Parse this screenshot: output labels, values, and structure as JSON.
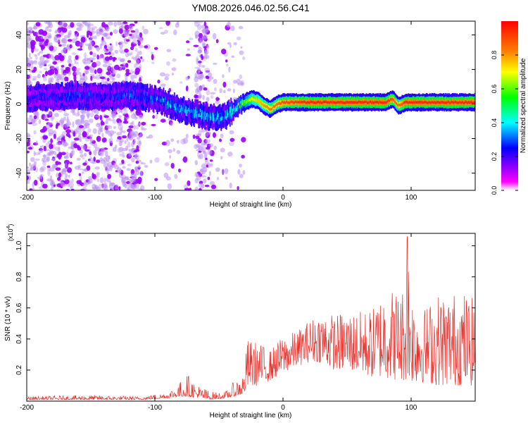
{
  "title": "YM08.2026.046.02.56.C41",
  "colors": {
    "spectrum_ramp": [
      "#ffffff",
      "#ff00ff",
      "#8000ff",
      "#0000ff",
      "#00ffff",
      "#00ff00",
      "#ffff00",
      "#ff8000",
      "#ff0000"
    ],
    "sparse_scatter": "#b88cf2",
    "snr_line": "#e8302b"
  },
  "chart_data": [
    {
      "type": "heatmap",
      "title": "YM08.2026.046.02.56.C41",
      "xlabel": "Height of straight line (km)",
      "ylabel": "Frequency (Hz)",
      "xlim": [
        -200,
        150
      ],
      "ylim": [
        -50,
        48
      ],
      "x_ticks": [
        -200,
        -100,
        0,
        100
      ],
      "x_tick_labels": [
        "-200",
        "-100",
        "0",
        "100"
      ],
      "y_ticks": [
        -40,
        -20,
        0,
        20,
        40
      ],
      "y_tick_labels": [
        "-40",
        "-20",
        "0",
        "20",
        "40"
      ],
      "colorbar": {
        "label": "Normalized spectral amplitude",
        "range": [
          0,
          1
        ],
        "ticks": [
          0.0,
          0.2,
          0.4,
          0.6,
          0.8
        ],
        "tick_labels": [
          "0.0",
          "0.2",
          "0.4",
          "0.6",
          "0.8"
        ]
      },
      "ridge": {
        "x": [
          -200,
          -180,
          -160,
          -140,
          -120,
          -110,
          -100,
          -90,
          -80,
          -70,
          -60,
          -50,
          -45,
          -40,
          -35,
          -30,
          -25,
          -20,
          -15,
          -10,
          -5,
          0,
          20,
          40,
          60,
          80,
          85,
          90,
          95,
          100,
          120,
          150
        ],
        "freq": [
          3,
          4,
          5,
          4,
          5,
          4,
          3,
          0,
          -3,
          -5,
          -7,
          -8,
          -7,
          -4,
          -1,
          1,
          3,
          2,
          -1,
          -3,
          0,
          1,
          1,
          1,
          1,
          1,
          3,
          -1,
          1,
          1,
          1,
          1
        ],
        "amp": [
          0.22,
          0.25,
          0.28,
          0.25,
          0.3,
          0.3,
          0.35,
          0.35,
          0.38,
          0.4,
          0.38,
          0.4,
          0.42,
          0.5,
          0.55,
          0.6,
          0.7,
          0.75,
          0.8,
          0.85,
          0.85,
          0.9,
          0.95,
          0.95,
          0.95,
          0.95,
          0.9,
          0.85,
          0.95,
          0.95,
          0.95,
          0.95
        ]
      }
    },
    {
      "type": "line",
      "xlabel": "Height of straight line (km)",
      "ylabel": "SNR (10 * v/v)",
      "scale_label": "(x10",
      "scale_exponent": "4",
      "scale_close": ")",
      "xlim": [
        -200,
        150
      ],
      "ylim": [
        0,
        1.08
      ],
      "x_ticks": [
        -200,
        -100,
        0,
        100
      ],
      "x_tick_labels": [
        "-200",
        "-100",
        "0",
        "100"
      ],
      "y_ticks": [
        0.2,
        0.4,
        0.6,
        0.8,
        1.0
      ],
      "y_tick_labels": [
        "0.2",
        "0.4",
        "0.6",
        "0.8",
        "1.0"
      ],
      "series": [
        {
          "name": "SNR",
          "envelope_x": [
            -200,
            -150,
            -110,
            -90,
            -80,
            -75,
            -65,
            -55,
            -45,
            -38,
            -30,
            -28,
            -20,
            -10,
            0,
            10,
            20,
            30,
            40,
            50,
            60,
            70,
            80,
            90,
            95,
            97,
            100,
            110,
            120,
            130,
            140,
            150
          ],
          "envelope_max": [
            0.03,
            0.04,
            0.03,
            0.06,
            0.13,
            0.18,
            0.1,
            0.06,
            0.06,
            0.13,
            0.2,
            0.4,
            0.38,
            0.33,
            0.42,
            0.45,
            0.52,
            0.58,
            0.56,
            0.58,
            0.58,
            0.6,
            0.75,
            0.72,
            0.75,
            1.08,
            0.72,
            0.6,
            0.7,
            0.7,
            0.72,
            0.65
          ],
          "envelope_min": [
            0.01,
            0.01,
            0.01,
            0.02,
            0.03,
            0.03,
            0.02,
            0.01,
            0.02,
            0.03,
            0.05,
            0.08,
            0.1,
            0.13,
            0.18,
            0.22,
            0.25,
            0.25,
            0.2,
            0.2,
            0.18,
            0.15,
            0.15,
            0.13,
            0.13,
            0.12,
            0.12,
            0.12,
            0.1,
            0.1,
            0.1,
            0.1
          ]
        }
      ]
    }
  ]
}
